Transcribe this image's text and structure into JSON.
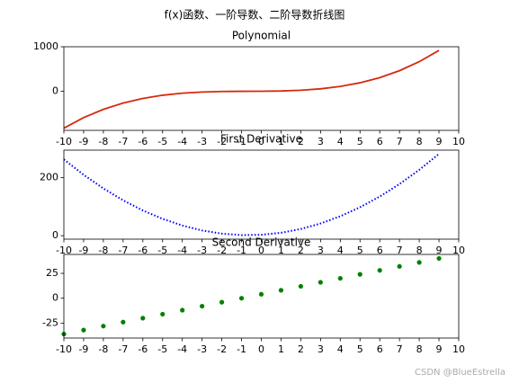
{
  "title": "f(x)函数、一阶导数、二阶导数折线图",
  "watermark": "CSDN @BlueEstrella",
  "chart_data": [
    {
      "type": "line",
      "title": "Polynomial",
      "style": "solid",
      "color": "#d62a0e",
      "x": [
        -10,
        -9,
        -8,
        -7,
        -6,
        -5,
        -4,
        -3,
        -2,
        -1,
        0,
        1,
        2,
        3,
        4,
        5,
        6,
        7,
        8,
        9
      ],
      "values": [
        -830,
        -594,
        -408,
        -266,
        -162,
        -90,
        -44,
        -18,
        -6,
        -2,
        0,
        6,
        22,
        54,
        108,
        190,
        306,
        462,
        664,
        918
      ],
      "xlim": [
        -10,
        10
      ],
      "xticks": [
        -10,
        -9,
        -8,
        -7,
        -6,
        -5,
        -4,
        -3,
        -2,
        -1,
        0,
        1,
        2,
        3,
        4,
        5,
        6,
        7,
        8,
        9,
        10
      ],
      "ylim": [
        -880,
        1000
      ],
      "yticks": [
        0,
        1000
      ]
    },
    {
      "type": "line",
      "title": "First Derivative",
      "style": "dotted",
      "color": "#0000ff",
      "x": [
        -10,
        -9,
        -8,
        -7,
        -6,
        -5,
        -4,
        -3,
        -2,
        -1,
        0,
        1,
        2,
        3,
        4,
        5,
        6,
        7,
        8,
        9
      ],
      "values": [
        263,
        210,
        163,
        122,
        87,
        58,
        35,
        18,
        7,
        2,
        3,
        10,
        23,
        42,
        67,
        98,
        135,
        178,
        227,
        282
      ],
      "xlim": [
        -10,
        10
      ],
      "xticks": [
        -10,
        -9,
        -8,
        -7,
        -6,
        -5,
        -4,
        -3,
        -2,
        -1,
        0,
        1,
        2,
        3,
        4,
        5,
        6,
        7,
        8,
        9,
        10
      ],
      "ylim": [
        -12,
        295
      ],
      "yticks": [
        0,
        200
      ]
    },
    {
      "type": "scatter",
      "title": "Second Derivative",
      "color": "#008000",
      "x": [
        -10,
        -9,
        -8,
        -7,
        -6,
        -5,
        -4,
        -3,
        -2,
        -1,
        0,
        1,
        2,
        3,
        4,
        5,
        6,
        7,
        8,
        9
      ],
      "values": [
        -36,
        -32,
        -28,
        -24,
        -20,
        -16,
        -12,
        -8,
        -4,
        0,
        4,
        8,
        12,
        16,
        20,
        24,
        28,
        32,
        36,
        40
      ],
      "xlim": [
        -10,
        10
      ],
      "xticks": [
        -10,
        -9,
        -8,
        -7,
        -6,
        -5,
        -4,
        -3,
        -2,
        -1,
        0,
        1,
        2,
        3,
        4,
        5,
        6,
        7,
        8,
        9,
        10
      ],
      "ylim": [
        -40,
        44
      ],
      "yticks": [
        -25,
        0,
        25
      ]
    }
  ]
}
